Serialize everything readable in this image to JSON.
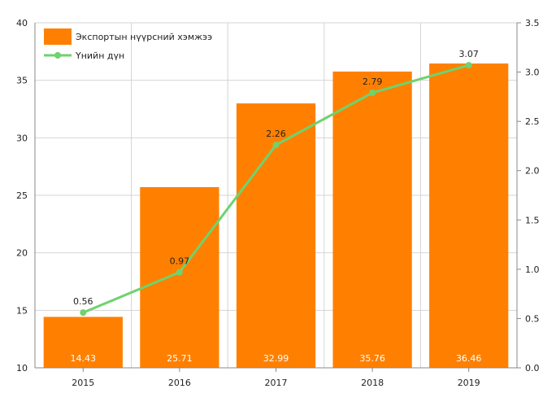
{
  "chart_data": {
    "type": "bar",
    "categories": [
      "2015",
      "2016",
      "2017",
      "2018",
      "2019"
    ],
    "series": [
      {
        "name": "Экспортын нүүрсний хэмжээ",
        "type": "bar",
        "axis": "left",
        "values": [
          14.43,
          25.71,
          32.99,
          35.76,
          36.46
        ],
        "labels": [
          "14.43",
          "25.71",
          "32.99",
          "35.76",
          "36.46"
        ],
        "color": "#ff8000"
      },
      {
        "name": "Үнийн дүн",
        "type": "line",
        "axis": "right",
        "values": [
          0.56,
          0.97,
          2.26,
          2.79,
          3.07
        ],
        "labels": [
          "0.56",
          "0.97",
          "2.26",
          "2.79",
          "3.07"
        ],
        "color": "#6fd26f"
      }
    ],
    "y_left": {
      "min": 10,
      "max": 40,
      "ticks": [
        "10",
        "15",
        "20",
        "25",
        "30",
        "35",
        "40"
      ]
    },
    "y_right": {
      "min": 0,
      "max": 3.5,
      "ticks": [
        "0.0",
        "0.5",
        "1.0",
        "1.5",
        "2.0",
        "2.5",
        "3.0",
        "3.5"
      ]
    },
    "grid": true,
    "legend_position": "top-left"
  }
}
